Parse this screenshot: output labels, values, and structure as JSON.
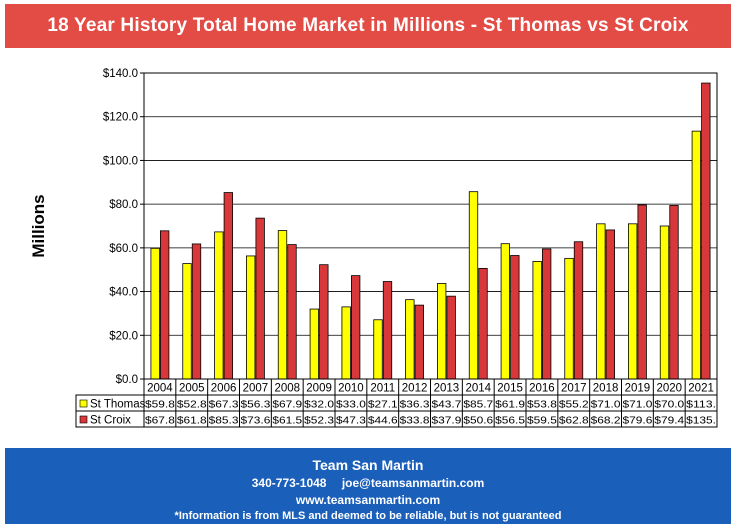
{
  "title": "18 Year History Total Home Market in Millions - St Thomas vs St Croix",
  "colors": {
    "title_bg": "#e34b45",
    "footer_bg": "#1a5fba",
    "st_thomas": "#ffff00",
    "st_croix": "#d9383a"
  },
  "chart_data": {
    "type": "bar",
    "title": "18 Year History Total Home Market in Millions - St Thomas vs St Croix",
    "ylabel": "Millions",
    "xlabel": "",
    "ylim": [
      0,
      140
    ],
    "yticks": [
      "$0.0",
      "$20.0",
      "$40.0",
      "$60.0",
      "$80.0",
      "$100.0",
      "$120.0",
      "$140.0"
    ],
    "grid": true,
    "categories": [
      "2004",
      "2005",
      "2006",
      "2007",
      "2008",
      "2009",
      "2010",
      "2011",
      "2012",
      "2013",
      "2014",
      "2015",
      "2016",
      "2017",
      "2018",
      "2019",
      "2020",
      "2021"
    ],
    "series": [
      {
        "name": "St Thomas",
        "values": [
          59.8,
          52.8,
          67.3,
          56.3,
          67.9,
          32.0,
          33.0,
          27.1,
          36.3,
          43.7,
          85.7,
          61.9,
          53.8,
          55.2,
          71.0,
          71.0,
          70.0,
          113.4
        ],
        "labels": [
          "$59.8",
          "$52.8",
          "$67.3",
          "$56.3",
          "$67.9",
          "$32.0",
          "$33.0",
          "$27.1",
          "$36.3",
          "$43.7",
          "$85.7",
          "$61.9",
          "$53.8",
          "$55.2",
          "$71.0",
          "$71.0",
          "$70.0",
          "$113."
        ]
      },
      {
        "name": "St Croix",
        "values": [
          67.8,
          61.8,
          85.3,
          73.6,
          61.5,
          52.3,
          47.3,
          44.6,
          33.8,
          37.9,
          50.6,
          56.5,
          59.5,
          62.8,
          68.2,
          79.6,
          79.4,
          135.4
        ],
        "labels": [
          "$67.8",
          "$61.8",
          "$85.3",
          "$73.6",
          "$61.5",
          "$52.3",
          "$47.3",
          "$44.6",
          "$33.8",
          "$37.9",
          "$50.6",
          "$56.5",
          "$59.5",
          "$62.8",
          "$68.2",
          "$79.6",
          "$79.4",
          "$135."
        ]
      }
    ]
  },
  "footer": {
    "brand": "Team San Martin",
    "phone": "340-773-1048",
    "email": "joe@teamsanmartin.com",
    "website": "www.teamsanmartin.com",
    "disclaimer": "*Information is from MLS and deemed to be reliable, but is not guaranteed"
  }
}
